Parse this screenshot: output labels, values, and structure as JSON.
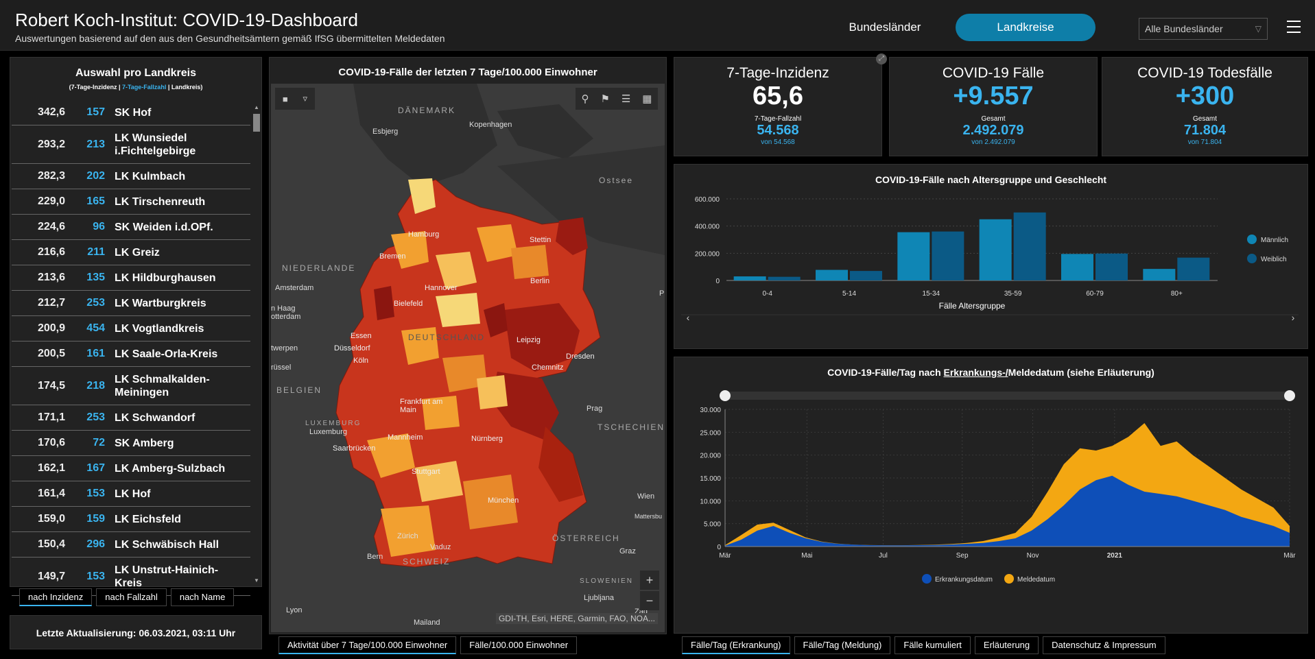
{
  "header": {
    "title": "Robert Koch-Institut: COVID-19-Dashboard",
    "subtitle": "Auswertungen basierend auf den aus den Gesundheitsämtern gemäß IfSG übermittelten Meldedaten",
    "nav_bundeslaender": "Bundesländer",
    "nav_landkreise": "Landkreise",
    "select_value": "Alle Bundesländer"
  },
  "list": {
    "title": "Auswahl pro Landkreis",
    "sub_a": "(7-Tage-Inzidenz | ",
    "sub_b": "7-Tage-Fallzahl",
    "sub_c": " | Landkreis)",
    "rows": [
      {
        "inc": "342,6",
        "cnt": "157",
        "name": "SK Hof"
      },
      {
        "inc": "293,2",
        "cnt": "213",
        "name": "LK Wunsiedel i.Fichtelgebirge"
      },
      {
        "inc": "282,3",
        "cnt": "202",
        "name": "LK Kulmbach"
      },
      {
        "inc": "229,0",
        "cnt": "165",
        "name": "LK Tirschenreuth"
      },
      {
        "inc": "224,6",
        "cnt": "96",
        "name": "SK Weiden i.d.OPf."
      },
      {
        "inc": "216,6",
        "cnt": "211",
        "name": "LK Greiz"
      },
      {
        "inc": "213,6",
        "cnt": "135",
        "name": "LK Hildburghausen"
      },
      {
        "inc": "212,7",
        "cnt": "253",
        "name": "LK Wartburgkreis"
      },
      {
        "inc": "200,9",
        "cnt": "454",
        "name": "LK Vogtlandkreis"
      },
      {
        "inc": "200,5",
        "cnt": "161",
        "name": "LK Saale-Orla-Kreis"
      },
      {
        "inc": "174,5",
        "cnt": "218",
        "name": "LK Schmalkalden-Meiningen"
      },
      {
        "inc": "171,1",
        "cnt": "253",
        "name": "LK Schwandorf"
      },
      {
        "inc": "170,6",
        "cnt": "72",
        "name": "SK Amberg"
      },
      {
        "inc": "162,1",
        "cnt": "167",
        "name": "LK Amberg-Sulzbach"
      },
      {
        "inc": "161,4",
        "cnt": "153",
        "name": "LK Hof"
      },
      {
        "inc": "159,0",
        "cnt": "159",
        "name": "LK Eichsfeld"
      },
      {
        "inc": "150,4",
        "cnt": "296",
        "name": "LK Schwäbisch Hall"
      },
      {
        "inc": "149,7",
        "cnt": "153",
        "name": "LK Unstrut-Hainich-Kreis"
      }
    ],
    "tabs": [
      "nach Inzidenz",
      "nach Fallzahl",
      "nach Name"
    ]
  },
  "update": "Letzte Aktualisierung: 06.03.2021, 03:11 Uhr",
  "map": {
    "title": "COVID-19-Fälle der letzten 7 Tage/100.000 Einwohner",
    "attribution": "GDI-TH, Esri, HERE, Garmin, FAO, NOA...",
    "labels": {
      "daenemark": "DÄNEMARK",
      "kopenhagen": "Kopenhagen",
      "esbjerg": "Esbjerg",
      "ostsee": "Ostsee",
      "hamburg": "Hamburg",
      "stettin": "Stettin",
      "niederlande": "NIEDERLANDE",
      "bremen": "Bremen",
      "amsterdam": "Amsterdam",
      "hannover": "Hannover",
      "berlin": "Berlin",
      "denhaag": "n Haag",
      "rotterdam": "otterdam",
      "bielefeld": "Bielefeld",
      "deutschland": "DEUTSCHLAND",
      "essen": "Essen",
      "leipzig": "Leipzig",
      "antwerpen": "twerpen",
      "duesseldorf": "Düsseldorf",
      "dresden": "Dresden",
      "bruessel": "rüssel",
      "koeln": "Köln",
      "chemnitz": "Chemnitz",
      "belgien": "BELGIEN",
      "frankfurt": "Frankfurt am Main",
      "prag": "Prag",
      "luxemburg_country": "LUXEMBURG",
      "luxemburg": "Luxemburg",
      "tschechien": "TSCHECHIEN",
      "mannheim": "Mannheim",
      "saarbruecken": "Saarbrücken",
      "nuernberg": "Nürnberg",
      "stuttgart": "Stuttgart",
      "wien": "Wien",
      "muenchen": "München",
      "mattersburg": "Mattersbu",
      "oesterreich": "ÖSTERREICH",
      "zuerich": "Zürich",
      "vaduz": "Vaduz",
      "graz": "Graz",
      "bern": "Bern",
      "schweiz": "SCHWEIZ",
      "slowenien": "SLOWENIEN",
      "lyon": "Lyon",
      "ljubljana": "Ljubljana",
      "mailand": "Mailand",
      "zagreb": "Zag",
      "p": "P"
    },
    "tabs": [
      "Aktivität über 7 Tage/100.000 Einwohner",
      "Fälle/100.000 Einwohner"
    ]
  },
  "kpis": [
    {
      "title": "7-Tage-Inzidenz",
      "main": "65,6",
      "label": "7-Tage-Fallzahl",
      "value": "54.568",
      "von": "von 54.568"
    },
    {
      "title": "COVID-19 Fälle",
      "main": "+9.557",
      "label": "Gesamt",
      "value": "2.492.079",
      "von": "von 2.492.079"
    },
    {
      "title": "COVID-19 Todesfälle",
      "main": "+300",
      "label": "Gesamt",
      "value": "71.804",
      "von": "von 71.804"
    }
  ],
  "age_chart": {
    "title": "COVID-19-Fälle nach Altersgruppe und Geschlecht",
    "xlabel": "Fälle Altersgruppe",
    "chart_data": {
      "type": "bar",
      "categories": [
        "0-4",
        "5-14",
        "15-34",
        "35-59",
        "60-79",
        "80+"
      ],
      "series": [
        {
          "name": "Männlich",
          "values": [
            30000,
            78000,
            355000,
            450000,
            195000,
            85000
          ]
        },
        {
          "name": "Weiblich",
          "values": [
            27000,
            70000,
            360000,
            500000,
            198000,
            168000
          ]
        }
      ],
      "yticks": [
        "0",
        "200.000",
        "400.000",
        "600.000"
      ],
      "ylim": [
        0,
        600000
      ],
      "colors": [
        "#0f86b5",
        "#0b5a86"
      ]
    }
  },
  "daily_chart": {
    "title_a": "COVID-19-Fälle/Tag nach ",
    "title_b": "Erkrankungs-/",
    "title_c": "Meldedatum (siehe Erläuterung)",
    "chart_data": {
      "type": "area",
      "xticks": [
        "Mär",
        "Mai",
        "Jul",
        "Sep",
        "Nov",
        "2021",
        "Mär"
      ],
      "yticks": [
        "0",
        "5.000",
        "10.000",
        "15.000",
        "20.000",
        "25.000",
        "30.000"
      ],
      "ylim": [
        0,
        30000
      ],
      "series": [
        {
          "name": "Erkrankungsdatum",
          "color": "#0e4fb8",
          "values": [
            200,
            1500,
            3500,
            4500,
            3000,
            1800,
            1000,
            600,
            400,
            300,
            250,
            250,
            300,
            350,
            450,
            600,
            800,
            1200,
            1800,
            3500,
            6000,
            9000,
            12500,
            14500,
            15500,
            13500,
            12000,
            11500,
            11000,
            10000,
            9000,
            8000,
            6500,
            5500,
            4500,
            3000
          ]
        },
        {
          "name": "Meldedatum",
          "color": "#f3a712",
          "values": [
            300,
            2500,
            4800,
            5200,
            3600,
            2000,
            1100,
            650,
            420,
            320,
            280,
            280,
            330,
            400,
            550,
            800,
            1200,
            2000,
            3000,
            6500,
            12000,
            18000,
            21500,
            21000,
            22000,
            24000,
            27000,
            22000,
            23000,
            20000,
            17500,
            15000,
            12500,
            10500,
            8500,
            4500
          ]
        }
      ]
    },
    "tabs": [
      "Fälle/Tag (Erkrankung)",
      "Fälle/Tag (Meldung)",
      "Fälle kumuliert",
      "Erläuterung",
      "Datenschutz & Impressum"
    ]
  }
}
